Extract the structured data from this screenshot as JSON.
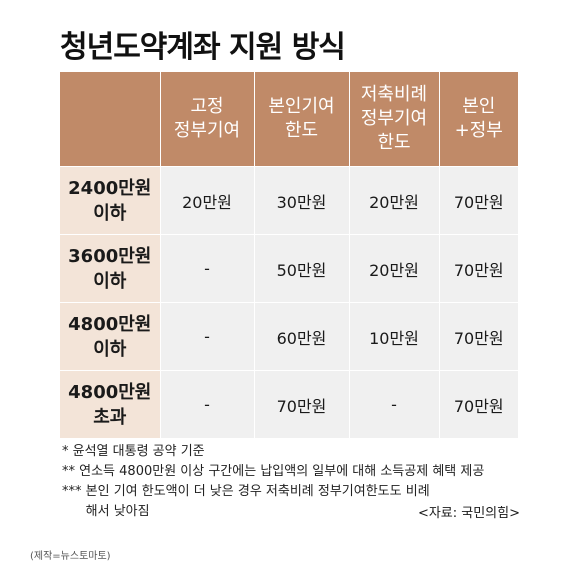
{
  "title": "청년도약계좌 지원 방식",
  "table": {
    "headers": [
      "",
      "고정\n정부기여",
      "본인기여\n한도",
      "저축비례\n정부기여\n한도",
      "본인\n+정부"
    ],
    "rows": [
      {
        "label": "2400만원\n이하",
        "cells": [
          "20만원",
          "30만원",
          "20만원",
          "70만원"
        ]
      },
      {
        "label": "3600만원\n이하",
        "cells": [
          "-",
          "50만원",
          "20만원",
          "70만원"
        ]
      },
      {
        "label": "4800만원\n이하",
        "cells": [
          "-",
          "60만원",
          "10만원",
          "70만원"
        ]
      },
      {
        "label": "4800만원\n초과",
        "cells": [
          "-",
          "70만원",
          "-",
          "70만원"
        ]
      }
    ]
  },
  "notes": [
    {
      "mark": "* ",
      "text": "윤석열 대통령 공약 기준"
    },
    {
      "mark": "** ",
      "text": "연소득 4800만원 이상 구간에는 납입액의 일부에 대해 소득공제 혜택 제공"
    },
    {
      "mark": "*** ",
      "text": "본인 기여 한도액이 더 낮은 경우 저축비례 정부기여한도도 비례해서 낮아짐"
    }
  ],
  "source": "<자료: 국민의힘>",
  "credit": "(제작=뉴스토마토)"
}
